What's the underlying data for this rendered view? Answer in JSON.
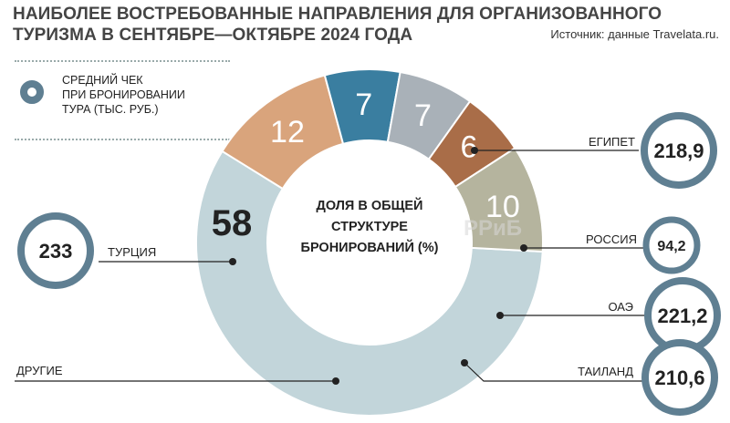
{
  "title_lines": [
    "НАИБОЛЕЕ ВОСТРЕБОВАННЫЕ НАПРАВЛЕНИЯ ДЛЯ ОРГАНИЗОВАННОГО",
    "ТУРИЗМА В СЕНТЯБРЕ—ОКТЯБРЕ 2024 ГОДА"
  ],
  "source": "Источник: данные Travelata.ru.",
  "legend_lines": [
    "СРЕДНИЙ ЧЕК",
    "ПРИ БРОНИРОВАНИИ",
    "ТУРА (ТЫС. РУБ.)"
  ],
  "watermark": "РРиБ",
  "chart_data": {
    "type": "pie",
    "center_label": [
      "ДОЛЯ В ОБЩЕЙ",
      "СТРУКТУРЕ",
      "БРОНИРОВАНИЙ (%)"
    ],
    "slices": [
      {
        "label": "ТУРЦИЯ",
        "value": 58,
        "check": "233",
        "color": "#c2d5da"
      },
      {
        "label": "ЕГИПЕТ",
        "value": 12,
        "check": "218,9",
        "color": "#d9a47c"
      },
      {
        "label": "РОССИЯ",
        "value": 7,
        "check": "94,2",
        "color": "#3a7ea0"
      },
      {
        "label": "ОАЭ",
        "value": 7,
        "check": "221,2",
        "color": "#a9b1b8"
      },
      {
        "label": "ТАИЛАНД",
        "value": 6,
        "check": "210,6",
        "color": "#a96d48"
      },
      {
        "label": "ДРУГИЕ",
        "value": 10,
        "check": "",
        "color": "#b5b49e"
      }
    ],
    "ring_color": "#5f7f92"
  }
}
